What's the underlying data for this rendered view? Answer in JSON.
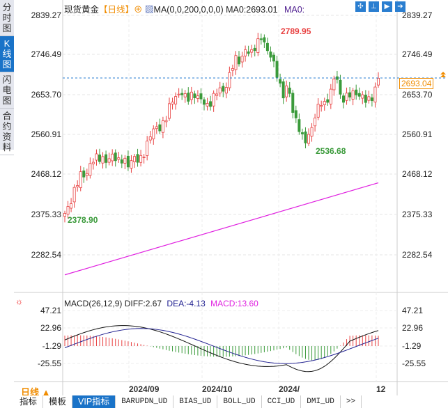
{
  "sidebar": {
    "tabs": [
      "分时图",
      "K线图",
      "闪电图",
      "合约资料"
    ],
    "active": 1
  },
  "header": {
    "symbol": "现货黄金",
    "period": "【日线】",
    "ma_label": "MA(0,0,200,0,0,0)",
    "ma0": "MA0:2693.01",
    "ma0b": "MA0:"
  },
  "price_axis": [
    "2839.27",
    "2746.49",
    "2653.70",
    "2560.91",
    "2468.12",
    "2375.33",
    "2282.54"
  ],
  "current_price": "2693.04",
  "annotations": {
    "high": "2789.95",
    "low": "2536.68",
    "start": "2378.90"
  },
  "macd": {
    "title": "MACD(26,12,9)",
    "diff": "DIFF:2.67",
    "dea": "DEA:-4.13",
    "macd": "MACD:13.60",
    "axis": [
      "47.21",
      "22.96",
      "-1.29",
      "-25.55"
    ]
  },
  "time_axis": {
    "period": "日线 ▲",
    "labels": [
      "2024/09",
      "2024/10",
      "2024/",
      "12"
    ]
  },
  "bottom_tabs": [
    "指标",
    "模板",
    "VIP指标",
    "BARUPDN_UD",
    "BIAS_UD",
    "BOLL_UD",
    "CCI_UD",
    "DMI_UD",
    ">>"
  ],
  "colors": {
    "up": "#e84040",
    "down": "#3a9a3a",
    "ma": "#e020e0",
    "diff": "#111111",
    "dea": "#202090",
    "accent": "#1a73c8"
  },
  "chart_data": {
    "type": "candlestick",
    "ylim": [
      2236,
      2860
    ],
    "close_anchors": [
      2379,
      2400,
      2440,
      2470,
      2465,
      2500,
      2510,
      2505,
      2500,
      2515,
      2500,
      2505,
      2490,
      2510,
      2500,
      2520,
      2560,
      2580,
      2575,
      2600,
      2640,
      2650,
      2660,
      2645,
      2655,
      2650,
      2640,
      2625,
      2650,
      2670,
      2660,
      2700,
      2740,
      2730,
      2760,
      2750,
      2770,
      2790,
      2760,
      2740,
      2700,
      2650,
      2680,
      2610,
      2580,
      2545,
      2560,
      2600,
      2640,
      2630,
      2660,
      2710,
      2640,
      2650,
      2660,
      2655,
      2650,
      2640,
      2650,
      2693
    ],
    "ma200": [
      2236,
      2450
    ]
  }
}
